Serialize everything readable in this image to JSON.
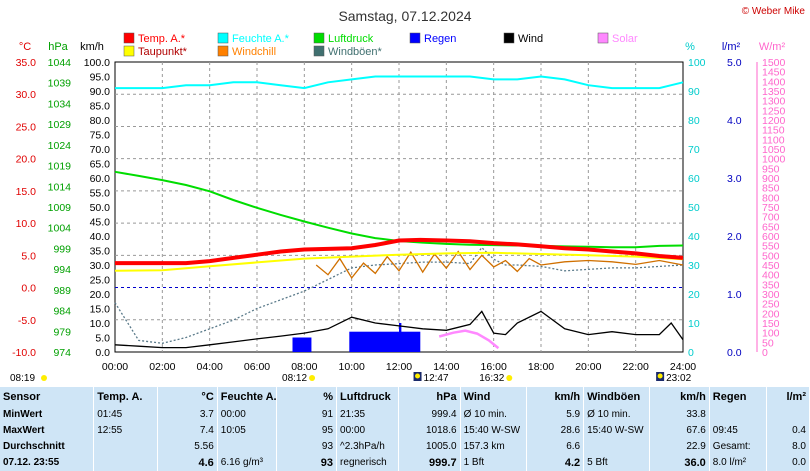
{
  "chart_data": {
    "type": "line",
    "title": "Samstag, 07.12.2024",
    "credit": "© Weber Mike",
    "axis_units": [
      "°C",
      "hPa",
      "km/h",
      "%",
      "l/m²",
      "W/m²"
    ],
    "axes": {
      "temp": {
        "unit": "°C",
        "min": -10,
        "max": 35,
        "step": 5,
        "color": "#e00000",
        "decimals": 1
      },
      "pressure": {
        "unit": "hPa",
        "min": 974,
        "max": 1044,
        "step": 5,
        "color": "#00a000",
        "decimals": 0
      },
      "wind": {
        "unit": "km/h",
        "min": 0,
        "max": 100,
        "step": 5,
        "color": "#000000",
        "decimals": 1
      },
      "humidity": {
        "unit": "%",
        "min": 0,
        "max": 100,
        "step": 10,
        "color": "#00cccc",
        "decimals": 0
      },
      "rain": {
        "unit": "l/m²",
        "min": 0,
        "max": 5,
        "step": 1,
        "color": "#0000c0",
        "decimals": 1
      },
      "solar": {
        "unit": "W/m²",
        "min": 0,
        "max": 1500,
        "step": 50,
        "color": "#ff66cc",
        "decimals": 0
      }
    },
    "x_ticks": [
      "00:00",
      "02:00",
      "04:00",
      "06:00",
      "08:00",
      "10:00",
      "12:00",
      "14:00",
      "16:00",
      "18:00",
      "20:00",
      "22:00",
      "24:00"
    ],
    "legend": [
      {
        "label": "Temp. A.*",
        "color": "#ff0000"
      },
      {
        "label": "Feuchte A.*",
        "color": "#00ffff"
      },
      {
        "label": "Luftdruck",
        "color": "#00dd00"
      },
      {
        "label": "Regen",
        "color": "#0000ff"
      },
      {
        "label": "Wind",
        "color": "#000000"
      },
      {
        "label": "Solar",
        "color": "#ff88ff"
      },
      {
        "label": "Taupunkt*",
        "color": "#ffff00"
      },
      {
        "label": "Windchill",
        "color": "#ff8000"
      },
      {
        "label": "Windböen*",
        "color": "#407070"
      }
    ],
    "series": [
      {
        "name": "Temp. A.*",
        "axis": "temp",
        "color": "#ff0000",
        "x": [
          0,
          1,
          2,
          3,
          4,
          5,
          6,
          7,
          8,
          9,
          10,
          11,
          12,
          12.9,
          14,
          15,
          16,
          17,
          18,
          19,
          20,
          21,
          22,
          23,
          24
        ],
        "values": [
          3.8,
          3.8,
          3.8,
          3.8,
          4.1,
          4.6,
          5.1,
          5.6,
          5.9,
          6.0,
          6.1,
          6.6,
          7.3,
          7.4,
          7.3,
          7.2,
          6.9,
          6.7,
          6.4,
          6.1,
          5.9,
          5.6,
          5.3,
          4.9,
          4.6
        ]
      },
      {
        "name": "Taupunkt*",
        "axis": "temp",
        "color": "#ffff00",
        "x": [
          0,
          2,
          4,
          6,
          8,
          10,
          12,
          14,
          16,
          18,
          20,
          22,
          24
        ],
        "values": [
          2.6,
          2.7,
          3.3,
          3.9,
          4.5,
          4.8,
          5.1,
          5.3,
          5.4,
          5.2,
          5.0,
          4.8,
          4.4
        ]
      },
      {
        "name": "Windchill",
        "axis": "temp",
        "color": "#d07000",
        "x": [
          8.5,
          9,
          9.5,
          10,
          10.5,
          11,
          11.5,
          12,
          12.5,
          13,
          13.5,
          14,
          14.5,
          15,
          15.5,
          16,
          16.5,
          17,
          17.5,
          18,
          19,
          20,
          21,
          22,
          23,
          24
        ],
        "values": [
          3.5,
          2.0,
          4.5,
          1.5,
          3.8,
          2.2,
          4.8,
          2.6,
          5.5,
          2.4,
          5.2,
          3.0,
          5.6,
          2.8,
          5.0,
          3.2,
          4.2,
          2.5,
          4.5,
          3.5,
          4.0,
          4.2,
          4.0,
          3.6,
          4.2,
          3.5
        ]
      },
      {
        "name": "Feuchte A.*",
        "axis": "humidity",
        "color": "#00ffff",
        "x": [
          0,
          2,
          3,
          4,
          5,
          6,
          7,
          8,
          9,
          10,
          11,
          12,
          13,
          14,
          15,
          16,
          17,
          18,
          19,
          20,
          21,
          22,
          23,
          23.5,
          24
        ],
        "values": [
          91,
          91,
          92,
          92,
          93,
          93,
          92,
          91,
          93,
          94,
          95,
          95,
          95,
          95,
          95,
          94,
          94,
          95,
          94,
          92,
          91,
          91,
          91,
          92,
          93
        ]
      },
      {
        "name": "Luftdruck",
        "axis": "pressure",
        "color": "#00dd00",
        "x": [
          0,
          1,
          2,
          3,
          4,
          5,
          6,
          7,
          8,
          9,
          10,
          11,
          12,
          13,
          14,
          15,
          16,
          17,
          18,
          19,
          20,
          21,
          22,
          23,
          24
        ],
        "values": [
          1017.5,
          1016.5,
          1015.5,
          1014.3,
          1012.8,
          1010.7,
          1008.8,
          1007.1,
          1005.5,
          1004.0,
          1002.6,
          1001.5,
          1000.8,
          1000.4,
          1000.1,
          999.9,
          999.8,
          999.7,
          999.6,
          999.5,
          999.4,
          999.3,
          999.3,
          999.6,
          999.7
        ]
      },
      {
        "name": "Wind",
        "axis": "wind",
        "color": "#000000",
        "x": [
          0,
          1,
          2,
          3,
          4,
          5,
          6,
          7,
          8,
          9,
          10,
          11,
          12,
          13,
          14,
          15,
          15.5,
          16,
          16.5,
          17,
          18,
          19,
          20,
          21,
          22,
          23,
          23.5,
          24
        ],
        "values": [
          2.5,
          2.0,
          1.5,
          1.5,
          2.5,
          3.5,
          4.5,
          5.5,
          6.5,
          8.0,
          12.0,
          10.0,
          9.0,
          8.0,
          7.5,
          9.5,
          14.0,
          6.5,
          6.0,
          10.0,
          14.0,
          8.0,
          6.0,
          7.0,
          6.0,
          6.0,
          10.0,
          4.2
        ]
      },
      {
        "name": "Windböen*",
        "axis": "wind",
        "color": "#5a7a8a",
        "x": [
          0,
          1,
          2,
          3,
          4,
          5,
          6,
          7,
          8,
          9,
          10,
          11,
          12,
          13,
          14,
          15,
          15.5,
          16,
          16.5,
          17,
          18,
          19,
          20,
          21,
          22,
          23,
          24
        ],
        "values": [
          17.0,
          4.0,
          3.0,
          5.0,
          8.0,
          11.0,
          15.0,
          18.0,
          21.0,
          25.0,
          29.0,
          30.0,
          30.5,
          31.0,
          31.0,
          30.5,
          36.0,
          32.0,
          30.0,
          30.0,
          29.5,
          28.0,
          28.5,
          29.0,
          29.0,
          29.5,
          30.0
        ]
      }
    ],
    "rain_blocks": [
      {
        "start": 7.5,
        "end": 8.3,
        "height": 0.25
      },
      {
        "start": 9.9,
        "end": 12.9,
        "height": 0.35
      },
      {
        "start": 12.0,
        "end": 12.1,
        "height": 0.5
      }
    ],
    "solar_series": {
      "x": [
        13.7,
        14.3,
        14.8,
        15.3,
        15.8,
        16.2
      ],
      "values": [
        80,
        100,
        110,
        95,
        60,
        20
      ]
    },
    "markers": [
      {
        "time": "08:19",
        "row": "left"
      },
      {
        "time": "08:12",
        "row": "sun"
      },
      {
        "time": "12:47",
        "row": "moon"
      },
      {
        "time": "16:32",
        "row": "sun"
      },
      {
        "time": "23:02",
        "row": "moon"
      }
    ]
  },
  "summary_table": {
    "headers": [
      "Sensor",
      "Temp. A.",
      "°C",
      "Feuchte A.",
      "%",
      "Luftdruck",
      "hPa",
      "Wind",
      "km/h",
      "Windböen",
      "km/h",
      "Regen",
      "l/m²"
    ],
    "rows": [
      [
        "MinWert",
        "01:45",
        "3.7",
        "00:00",
        "91",
        "21:35",
        "999.4",
        "Ø 10 min.",
        "5.9",
        "Ø 10 min.",
        "33.8",
        "",
        ""
      ],
      [
        "MaxWert",
        "12:55",
        "7.4",
        "10:05",
        "95",
        "00:00",
        "1018.6",
        "15:40  W-SW",
        "28.6",
        "15:40  W-SW",
        "67.6",
        "09:45",
        "0.4"
      ],
      [
        "Durchschnitt",
        "",
        "5.56",
        "",
        "93",
        "^2.3hPa/h",
        "1005.0",
        "157.3 km",
        "6.6",
        "",
        "22.9",
        "Gesamt:",
        "8.0"
      ],
      [
        "07.12. 23:55",
        "",
        "4.6",
        "6.16 g/m³",
        "93",
        "regnerisch",
        "999.7",
        "1 Bft",
        "4.2",
        "5 Bft",
        "36.0",
        "8.0 l/m²",
        "0.0"
      ]
    ]
  }
}
